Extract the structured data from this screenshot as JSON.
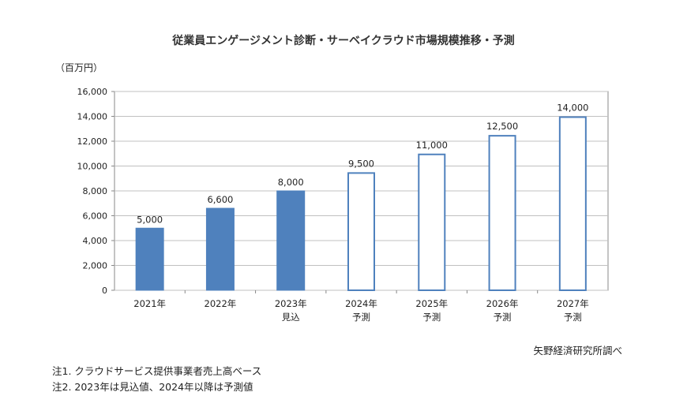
{
  "chart_data": {
    "type": "bar",
    "title": "従業員エンゲージメント診断・サーベイクラウド市場規模推移・予測",
    "unit_label": "（百万円）",
    "categories": [
      [
        "2021年"
      ],
      [
        "2022年"
      ],
      [
        "2023年",
        "見込"
      ],
      [
        "2024年",
        "予測"
      ],
      [
        "2025年",
        "予測"
      ],
      [
        "2026年",
        "予測"
      ],
      [
        "2027年",
        "予測"
      ]
    ],
    "values": [
      5000,
      6600,
      8000,
      9500,
      11000,
      12500,
      14000
    ],
    "value_labels": [
      "5,000",
      "6,600",
      "8,000",
      "9,500",
      "11,000",
      "12,500",
      "14,000"
    ],
    "bar_style": [
      "actual",
      "actual",
      "estimate",
      "forecast",
      "forecast",
      "forecast",
      "forecast"
    ],
    "ylim": [
      0,
      16000
    ],
    "yticks": [
      0,
      2000,
      4000,
      6000,
      8000,
      10000,
      12000,
      14000,
      16000
    ],
    "ytick_labels": [
      "0",
      "2,000",
      "4,000",
      "6,000",
      "8,000",
      "10,000",
      "12,000",
      "14,000",
      "16,000"
    ],
    "grid": true,
    "colors": {
      "fill": "#4f81bd",
      "outline": "#4f81bd",
      "hollow": "#ffffff",
      "grid": "#c0c0c0",
      "axis": "#888888"
    }
  },
  "source": "矢野経済研究所調べ",
  "notes": [
    "注1.  クラウドサービス提供事業者売上高ベース",
    "注2.  2023年は見込値、2024年以降は予測値"
  ]
}
